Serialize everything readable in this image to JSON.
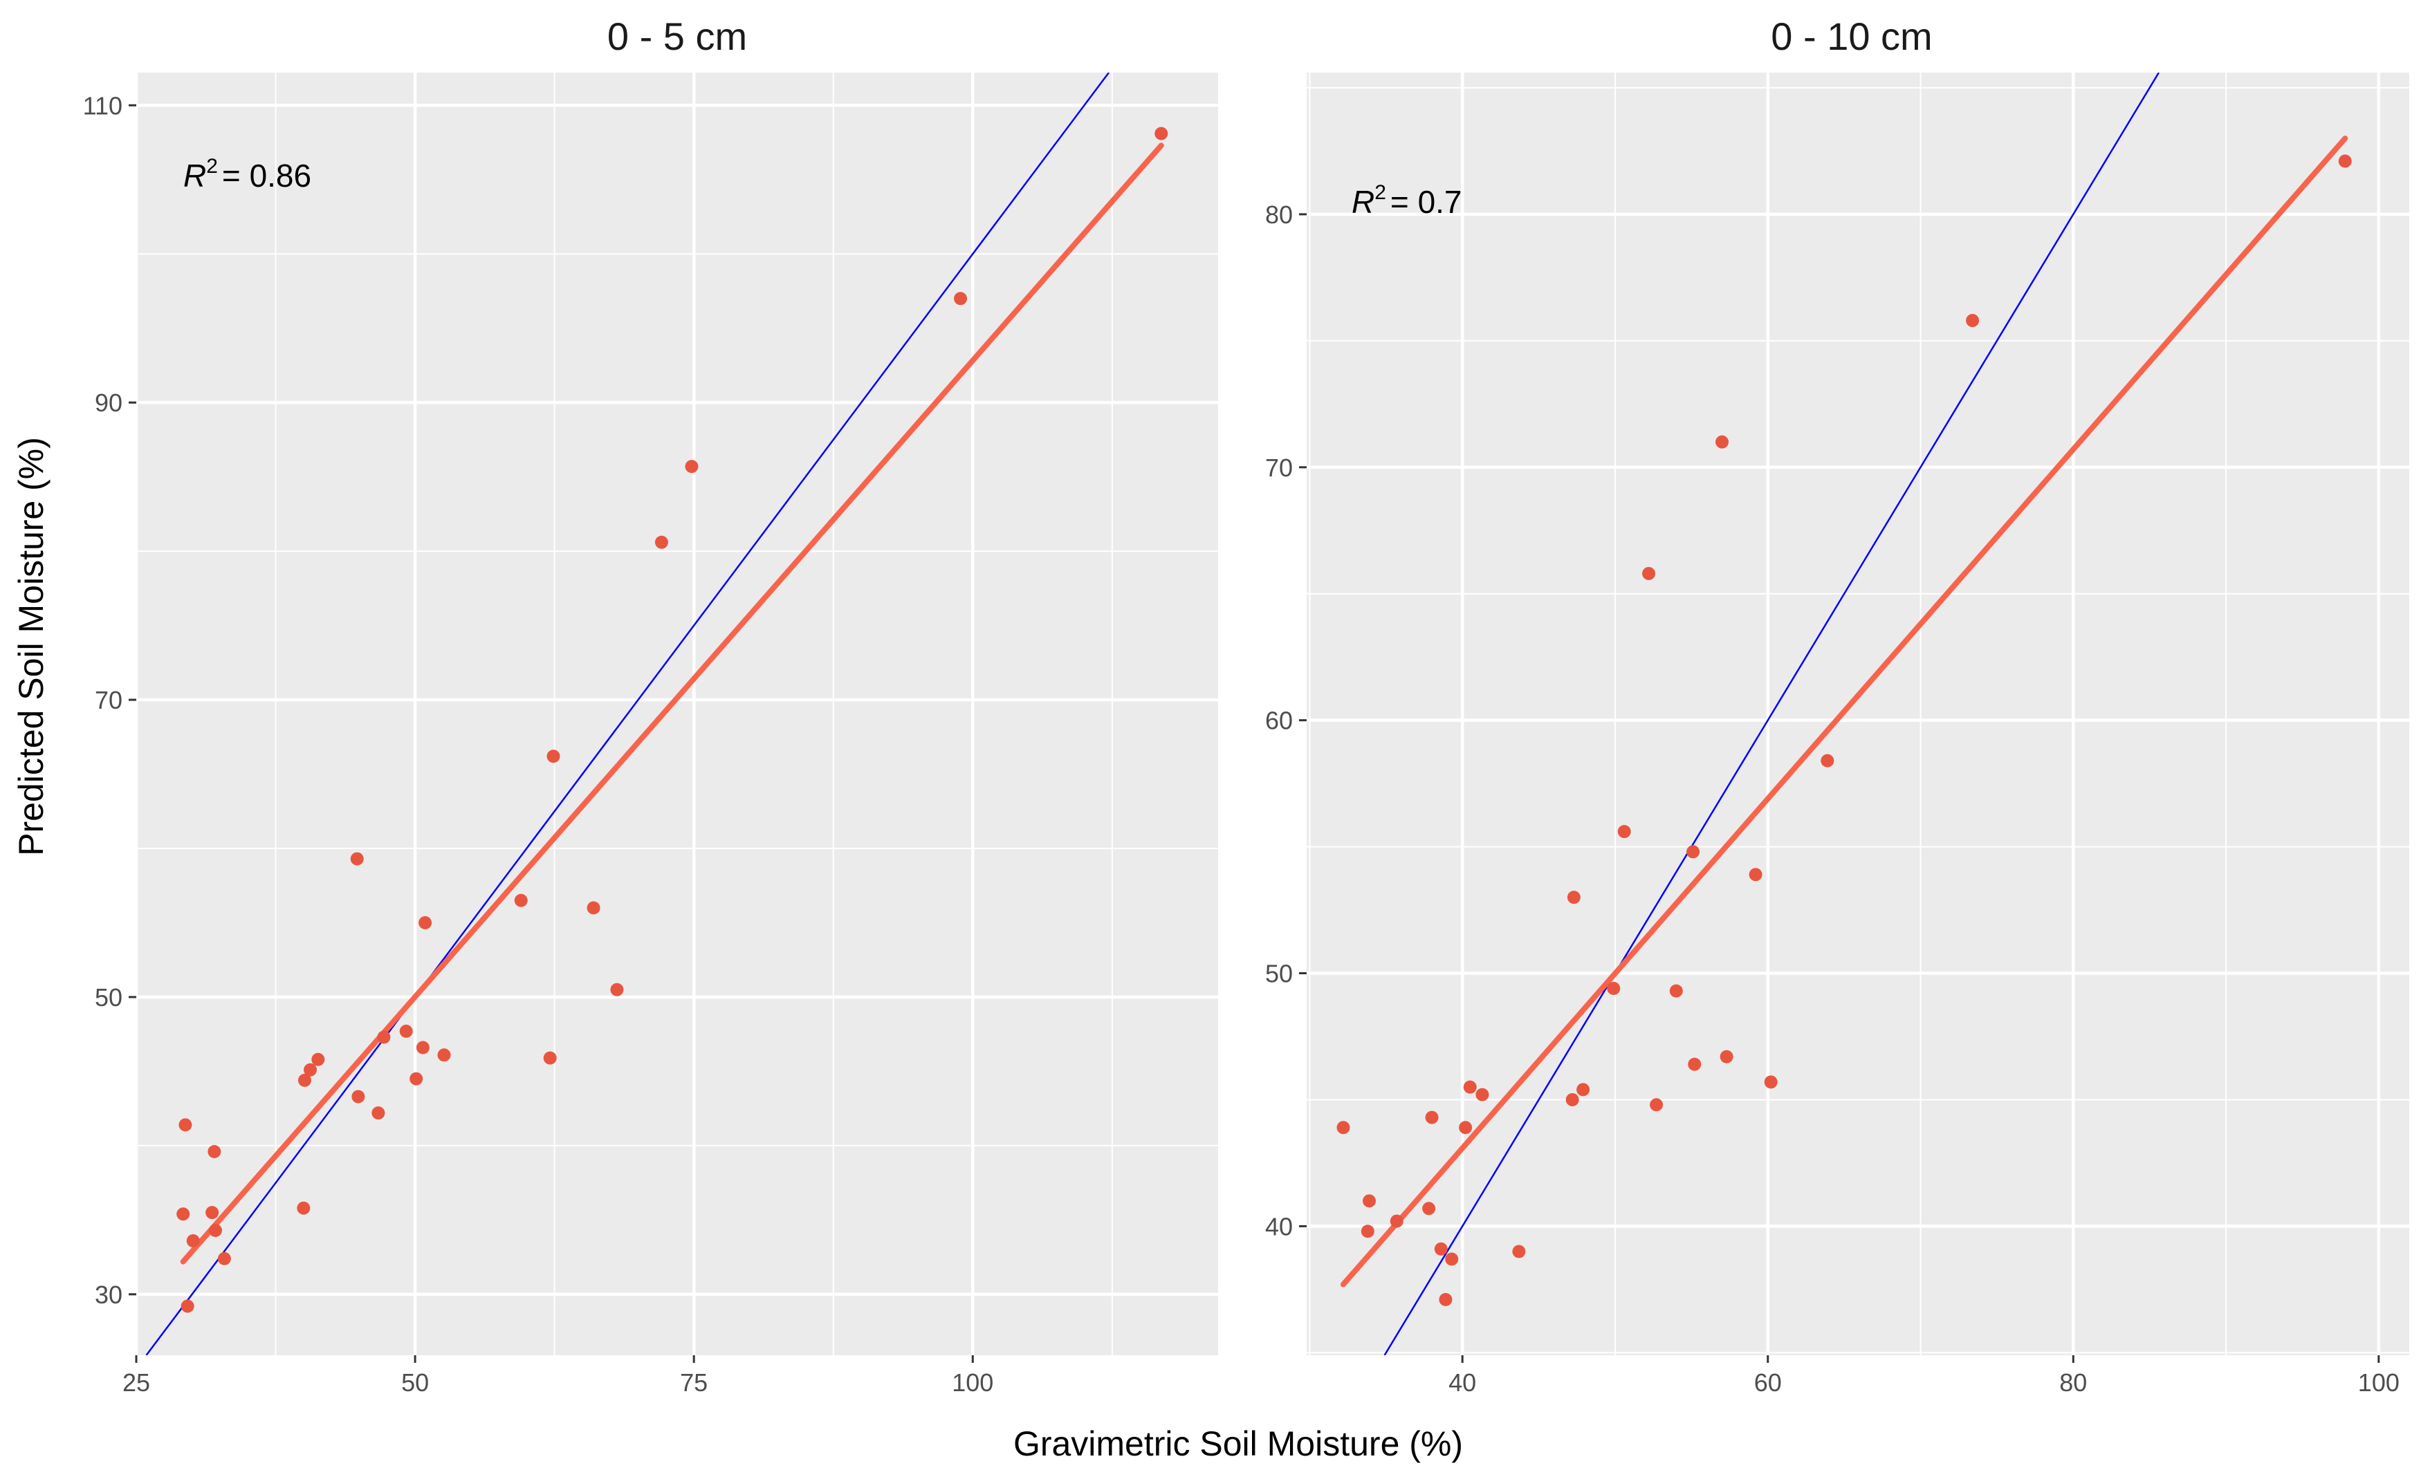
{
  "x_axis_label": "Gravimetric Soil Moisture (%)",
  "y_axis_label": "Predicted Soil Moisture (%)",
  "colors": {
    "panel_background": "#EBEBEB",
    "grid": "#FFFFFF",
    "points": "#E8553F",
    "fit_line": "#F8644B",
    "identity_line": "#0000FF",
    "tick_text": "#4D4D4D"
  },
  "chart_data": [
    {
      "type": "scatter",
      "title": "0 - 5 cm",
      "annotation": {
        "r2_label": "R",
        "r2_sup": "2",
        "r2_value": "= 0.86"
      },
      "xlim": [
        25,
        122
      ],
      "ylim": [
        25.9,
        112.2
      ],
      "x_ticks": [
        25,
        50,
        75,
        100
      ],
      "y_ticks": [
        30,
        50,
        70,
        90,
        110
      ],
      "grid": true,
      "points": [
        {
          "x": 29.4,
          "y": 41.4
        },
        {
          "x": 29.2,
          "y": 35.4
        },
        {
          "x": 29.6,
          "y": 29.2
        },
        {
          "x": 30.1,
          "y": 33.6
        },
        {
          "x": 32.0,
          "y": 39.6
        },
        {
          "x": 31.8,
          "y": 35.5
        },
        {
          "x": 32.1,
          "y": 34.3
        },
        {
          "x": 32.9,
          "y": 32.4
        },
        {
          "x": 40.0,
          "y": 35.8
        },
        {
          "x": 40.1,
          "y": 44.4
        },
        {
          "x": 40.6,
          "y": 45.1
        },
        {
          "x": 41.3,
          "y": 45.8
        },
        {
          "x": 44.9,
          "y": 43.3
        },
        {
          "x": 44.8,
          "y": 59.3
        },
        {
          "x": 46.7,
          "y": 42.2
        },
        {
          "x": 47.2,
          "y": 47.3
        },
        {
          "x": 49.2,
          "y": 47.7
        },
        {
          "x": 50.1,
          "y": 44.5
        },
        {
          "x": 50.7,
          "y": 46.6
        },
        {
          "x": 50.9,
          "y": 55.0
        },
        {
          "x": 52.6,
          "y": 46.1
        },
        {
          "x": 59.5,
          "y": 56.5
        },
        {
          "x": 62.1,
          "y": 45.9
        },
        {
          "x": 62.4,
          "y": 66.2
        },
        {
          "x": 66.0,
          "y": 56.0
        },
        {
          "x": 68.1,
          "y": 50.5
        },
        {
          "x": 72.1,
          "y": 80.6
        },
        {
          "x": 74.8,
          "y": 85.7
        },
        {
          "x": 98.9,
          "y": 97.0
        },
        {
          "x": 116.9,
          "y": 108.1
        }
      ],
      "fit_line": [
        {
          "x": 29.2,
          "y": 32.2
        },
        {
          "x": 116.9,
          "y": 107.3
        }
      ],
      "identity_line": [
        {
          "x": 25.9,
          "y": 25.9
        },
        {
          "x": 112.2,
          "y": 112.2
        }
      ]
    },
    {
      "type": "scatter",
      "title": "0 - 10 cm",
      "annotation": {
        "r2_label": "R",
        "r2_sup": "2",
        "r2_value": "= 0.7"
      },
      "xlim": [
        29.8,
        102.0
      ],
      "ylim": [
        34.9,
        85.6
      ],
      "x_ticks": [
        40,
        60,
        80,
        100
      ],
      "y_ticks": [
        40,
        50,
        60,
        70,
        80
      ],
      "grid": true,
      "points": [
        {
          "x": 32.2,
          "y": 43.9
        },
        {
          "x": 33.9,
          "y": 41.0
        },
        {
          "x": 33.8,
          "y": 39.8
        },
        {
          "x": 35.7,
          "y": 40.2
        },
        {
          "x": 37.8,
          "y": 40.7
        },
        {
          "x": 38.0,
          "y": 44.3
        },
        {
          "x": 38.6,
          "y": 39.1
        },
        {
          "x": 38.9,
          "y": 37.1
        },
        {
          "x": 39.3,
          "y": 38.7
        },
        {
          "x": 40.2,
          "y": 43.9
        },
        {
          "x": 40.5,
          "y": 45.5
        },
        {
          "x": 41.3,
          "y": 45.2
        },
        {
          "x": 43.7,
          "y": 39.0
        },
        {
          "x": 47.2,
          "y": 45.0
        },
        {
          "x": 47.3,
          "y": 53.0
        },
        {
          "x": 47.9,
          "y": 45.4
        },
        {
          "x": 49.9,
          "y": 49.4
        },
        {
          "x": 50.6,
          "y": 55.6
        },
        {
          "x": 52.2,
          "y": 65.8
        },
        {
          "x": 52.7,
          "y": 44.8
        },
        {
          "x": 54.0,
          "y": 49.3
        },
        {
          "x": 55.2,
          "y": 46.4
        },
        {
          "x": 55.1,
          "y": 54.8
        },
        {
          "x": 57.0,
          "y": 71.0
        },
        {
          "x": 57.3,
          "y": 46.7
        },
        {
          "x": 59.2,
          "y": 53.9
        },
        {
          "x": 60.2,
          "y": 45.7
        },
        {
          "x": 63.9,
          "y": 58.4
        },
        {
          "x": 73.4,
          "y": 75.8
        },
        {
          "x": 97.8,
          "y": 82.1
        }
      ],
      "fit_line": [
        {
          "x": 32.2,
          "y": 37.7
        },
        {
          "x": 97.8,
          "y": 83.0
        }
      ],
      "identity_line": [
        {
          "x": 34.9,
          "y": 34.9
        },
        {
          "x": 85.6,
          "y": 85.6
        }
      ]
    }
  ]
}
